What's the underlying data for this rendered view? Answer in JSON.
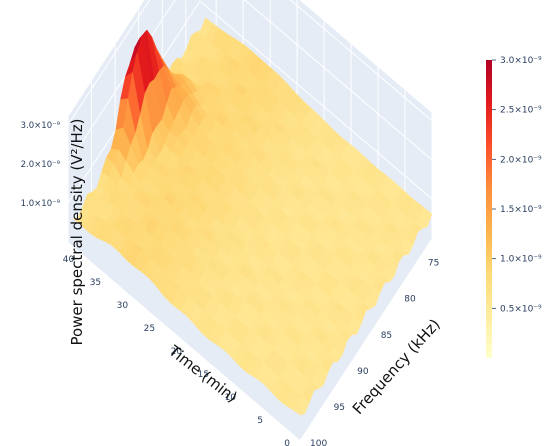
{
  "chart_data": {
    "type": "surface",
    "zlabel": "Power spectral density (V²/Hz)",
    "ylabel": "Time (min)",
    "xlabel": "Frequency (kHz)",
    "x_ticks": [
      75,
      80,
      85,
      90,
      95,
      100
    ],
    "y_ticks": [
      0,
      5,
      10,
      15,
      20,
      25,
      30,
      35,
      40
    ],
    "z_tick_labels": [
      "1.0×10⁻⁹",
      "2.0×10⁻⁹",
      "3.0×10⁻⁹"
    ],
    "z_ticks": [
      1e-09,
      2e-09,
      3e-09
    ],
    "colorbar_tick_labels": [
      "0.5×10⁻⁹",
      "1.0×10⁻⁹",
      "1.5×10⁻⁹",
      "2.0×10⁻⁹",
      "2.5×10⁻⁹",
      "3.0×10⁻⁹"
    ],
    "colorbar_ticks": [
      5e-10,
      1e-09,
      1.5e-09,
      2e-09,
      2.5e-09,
      3e-09
    ],
    "colorscale": [
      "#ffffcc",
      "#ffeda0",
      "#fed976",
      "#feb24c",
      "#fd8d3c",
      "#fc4e2a",
      "#e31a1c",
      "#b10026"
    ],
    "xlim": [
      72,
      100
    ],
    "ylim": [
      0,
      43
    ],
    "zlim": [
      0,
      3.2e-09
    ],
    "peak_value_approx": 3.1e-09,
    "baseline_value_approx": 6e-10,
    "grid": true,
    "background": "#e5ecf6"
  }
}
